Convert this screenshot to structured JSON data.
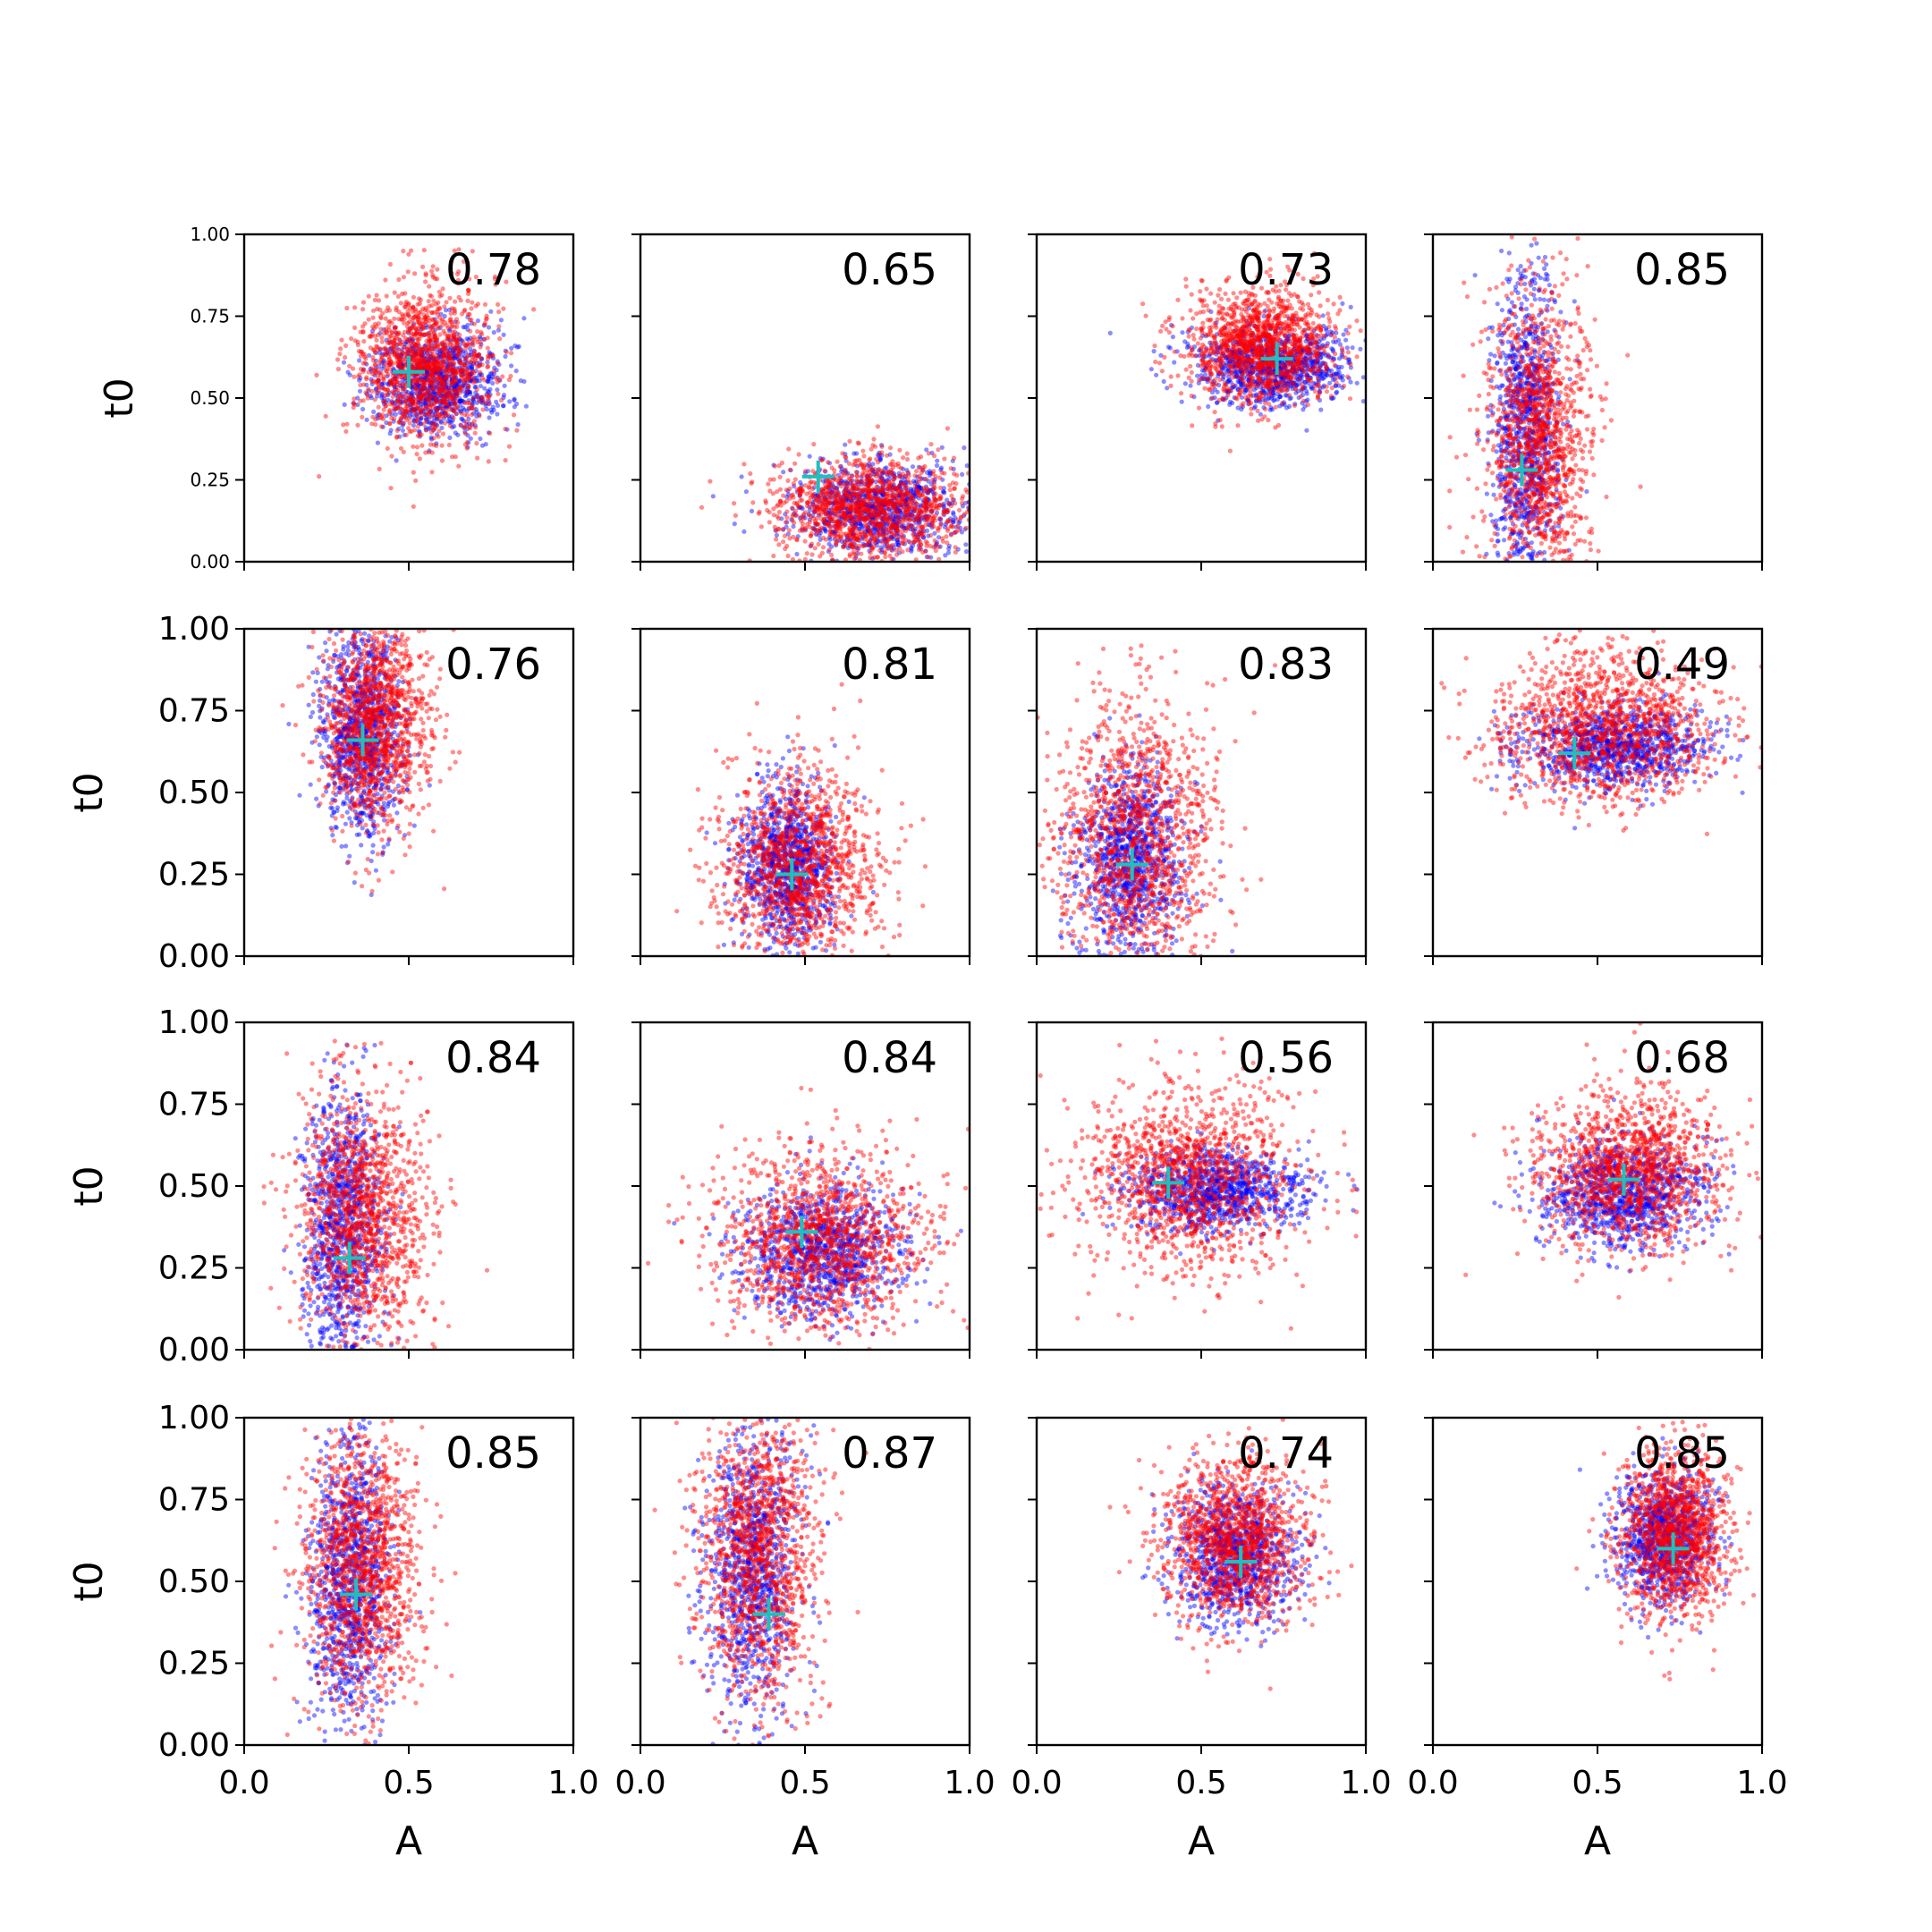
{
  "chart_data": {
    "type": "scatter",
    "grid_rows": 4,
    "grid_cols": 4,
    "xlim": [
      0,
      1
    ],
    "ylim": [
      0,
      1
    ],
    "xlabel": "A",
    "ylabel": "t0",
    "x_ticks": [
      "0.0",
      "0.5",
      "1.0"
    ],
    "y_ticks": [
      "0.00",
      "0.25",
      "0.50",
      "0.75",
      "1.00"
    ],
    "grid": false,
    "series_colors": {
      "samples_a": "#0000ff",
      "samples_b": "#ff0000",
      "marker": "#1fbfbf"
    },
    "marker_symbol": "plus",
    "panels": [
      {
        "score": "0.78",
        "marker": [
          0.5,
          0.58
        ],
        "blue": {
          "cx": 0.58,
          "cy": 0.55,
          "sx": 0.1,
          "sy": 0.08
        },
        "red": {
          "cx": 0.55,
          "cy": 0.6,
          "sx": 0.1,
          "sy": 0.12
        }
      },
      {
        "score": "0.65",
        "marker": [
          0.54,
          0.26
        ],
        "blue": {
          "cx": 0.72,
          "cy": 0.16,
          "sx": 0.13,
          "sy": 0.07
        },
        "red": {
          "cx": 0.7,
          "cy": 0.16,
          "sx": 0.15,
          "sy": 0.08
        }
      },
      {
        "score": "0.73",
        "marker": [
          0.73,
          0.62
        ],
        "blue": {
          "cx": 0.72,
          "cy": 0.6,
          "sx": 0.12,
          "sy": 0.06
        },
        "red": {
          "cx": 0.68,
          "cy": 0.66,
          "sx": 0.11,
          "sy": 0.09
        }
      },
      {
        "score": "0.85",
        "marker": [
          0.27,
          0.28
        ],
        "blue": {
          "cx": 0.28,
          "cy": 0.4,
          "sx": 0.05,
          "sy": 0.25
        },
        "red": {
          "cx": 0.32,
          "cy": 0.38,
          "sx": 0.08,
          "sy": 0.22
        }
      },
      {
        "score": "0.76",
        "marker": [
          0.36,
          0.66
        ],
        "blue": {
          "cx": 0.36,
          "cy": 0.68,
          "sx": 0.06,
          "sy": 0.16
        },
        "red": {
          "cx": 0.4,
          "cy": 0.72,
          "sx": 0.08,
          "sy": 0.16
        }
      },
      {
        "score": "0.81",
        "marker": [
          0.46,
          0.25
        ],
        "blue": {
          "cx": 0.44,
          "cy": 0.28,
          "sx": 0.07,
          "sy": 0.12
        },
        "red": {
          "cx": 0.48,
          "cy": 0.28,
          "sx": 0.12,
          "sy": 0.15
        }
      },
      {
        "score": "0.83",
        "marker": [
          0.29,
          0.28
        ],
        "blue": {
          "cx": 0.28,
          "cy": 0.3,
          "sx": 0.08,
          "sy": 0.14
        },
        "red": {
          "cx": 0.3,
          "cy": 0.35,
          "sx": 0.12,
          "sy": 0.22
        }
      },
      {
        "score": "0.49",
        "marker": [
          0.43,
          0.62
        ],
        "blue": {
          "cx": 0.55,
          "cy": 0.64,
          "sx": 0.14,
          "sy": 0.06
        },
        "red": {
          "cx": 0.52,
          "cy": 0.7,
          "sx": 0.16,
          "sy": 0.12
        }
      },
      {
        "score": "0.84",
        "marker": [
          0.32,
          0.28
        ],
        "blue": {
          "cx": 0.3,
          "cy": 0.35,
          "sx": 0.06,
          "sy": 0.22
        },
        "red": {
          "cx": 0.36,
          "cy": 0.4,
          "sx": 0.1,
          "sy": 0.2
        }
      },
      {
        "score": "0.84",
        "marker": [
          0.49,
          0.36
        ],
        "blue": {
          "cx": 0.55,
          "cy": 0.3,
          "sx": 0.12,
          "sy": 0.1
        },
        "red": {
          "cx": 0.55,
          "cy": 0.33,
          "sx": 0.16,
          "sy": 0.14
        }
      },
      {
        "score": "0.56",
        "marker": [
          0.4,
          0.51
        ],
        "blue": {
          "cx": 0.55,
          "cy": 0.49,
          "sx": 0.13,
          "sy": 0.06
        },
        "red": {
          "cx": 0.46,
          "cy": 0.52,
          "sx": 0.16,
          "sy": 0.14
        }
      },
      {
        "score": "0.68",
        "marker": [
          0.58,
          0.52
        ],
        "blue": {
          "cx": 0.58,
          "cy": 0.48,
          "sx": 0.12,
          "sy": 0.08
        },
        "red": {
          "cx": 0.6,
          "cy": 0.55,
          "sx": 0.14,
          "sy": 0.12
        }
      },
      {
        "score": "0.85",
        "marker": [
          0.34,
          0.46
        ],
        "blue": {
          "cx": 0.32,
          "cy": 0.5,
          "sx": 0.06,
          "sy": 0.22
        },
        "red": {
          "cx": 0.36,
          "cy": 0.55,
          "sx": 0.09,
          "sy": 0.22
        }
      },
      {
        "score": "0.87",
        "marker": [
          0.39,
          0.4
        ],
        "blue": {
          "cx": 0.34,
          "cy": 0.55,
          "sx": 0.07,
          "sy": 0.22
        },
        "red": {
          "cx": 0.36,
          "cy": 0.58,
          "sx": 0.09,
          "sy": 0.22
        }
      },
      {
        "score": "0.74",
        "marker": [
          0.62,
          0.56
        ],
        "blue": {
          "cx": 0.6,
          "cy": 0.58,
          "sx": 0.09,
          "sy": 0.1
        },
        "red": {
          "cx": 0.6,
          "cy": 0.62,
          "sx": 0.11,
          "sy": 0.13
        }
      },
      {
        "score": "0.85",
        "marker": [
          0.73,
          0.6
        ],
        "blue": {
          "cx": 0.7,
          "cy": 0.64,
          "sx": 0.07,
          "sy": 0.1
        },
        "red": {
          "cx": 0.74,
          "cy": 0.64,
          "sx": 0.08,
          "sy": 0.13
        }
      }
    ]
  }
}
